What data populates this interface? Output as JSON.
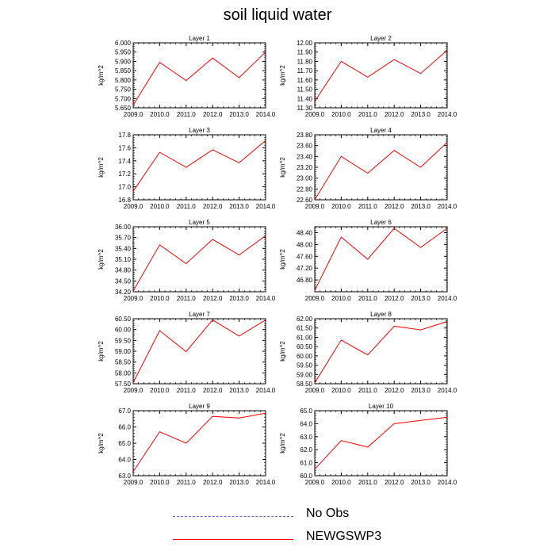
{
  "figure": {
    "title": "soil liquid water"
  },
  "legend": {
    "entries": [
      {
        "label": "No Obs",
        "style": "dashed",
        "color": "#6666cc"
      },
      {
        "label": "NEWGSWP3",
        "style": "solid",
        "color": "#ff0000"
      }
    ]
  },
  "chart_data": [
    {
      "type": "line",
      "title": "Layer 1",
      "ylabel": "kg/m^2",
      "x": [
        2009,
        2010,
        2011,
        2012,
        2013,
        2014
      ],
      "series": [
        {
          "name": "NEWGSWP3",
          "color": "#ff0000",
          "values": [
            5.665,
            5.895,
            5.797,
            5.918,
            5.812,
            5.95
          ]
        }
      ],
      "xticks": [
        "2009.0",
        "2010.0",
        "2011.0",
        "2012.0",
        "2013.0",
        "2014.0"
      ],
      "ylim": [
        5.65,
        6.0
      ],
      "yticks": [
        5.65,
        5.7,
        5.75,
        5.8,
        5.85,
        5.9,
        5.95,
        6.0
      ],
      "ytick_labels": [
        "5.650",
        "5.700",
        "5.750",
        "5.800",
        "5.850",
        "5.900",
        "5.950",
        "6.000"
      ]
    },
    {
      "type": "line",
      "title": "Layer 2",
      "ylabel": "kg/m^2",
      "x": [
        2009,
        2010,
        2011,
        2012,
        2013,
        2014
      ],
      "series": [
        {
          "name": "NEWGSWP3",
          "color": "#ff0000",
          "values": [
            11.37,
            11.8,
            11.63,
            11.82,
            11.67,
            11.92
          ]
        }
      ],
      "xticks": [
        "2009.0",
        "2010.0",
        "2011.0",
        "2012.0",
        "2013.0",
        "2014.0"
      ],
      "ylim": [
        11.3,
        12.0
      ],
      "yticks": [
        11.3,
        11.4,
        11.5,
        11.6,
        11.7,
        11.8,
        11.9,
        12.0
      ],
      "ytick_labels": [
        "11.30",
        "11.40",
        "11.50",
        "11.60",
        "11.70",
        "11.80",
        "11.90",
        "12.00"
      ]
    },
    {
      "type": "line",
      "title": "Layer 3",
      "ylabel": "kg/m^2",
      "x": [
        2009,
        2010,
        2011,
        2012,
        2013,
        2014
      ],
      "series": [
        {
          "name": "NEWGSWP3",
          "color": "#ff0000",
          "values": [
            16.93,
            17.53,
            17.3,
            17.57,
            17.37,
            17.71
          ]
        }
      ],
      "xticks": [
        "2009.0",
        "2010.0",
        "2011.0",
        "2012.0",
        "2013.0",
        "2014.0"
      ],
      "ylim": [
        16.8,
        17.8
      ],
      "yticks": [
        16.8,
        17.0,
        17.2,
        17.4,
        17.6,
        17.8
      ],
      "ytick_labels": [
        "16.8",
        "17.0",
        "17.2",
        "17.4",
        "17.6",
        "17.8"
      ]
    },
    {
      "type": "line",
      "title": "Layer 4",
      "ylabel": "kg/m^2",
      "x": [
        2009,
        2010,
        2011,
        2012,
        2013,
        2014
      ],
      "series": [
        {
          "name": "NEWGSWP3",
          "color": "#ff0000",
          "values": [
            22.6,
            23.4,
            23.09,
            23.51,
            23.2,
            23.66
          ]
        }
      ],
      "xticks": [
        "2009.0",
        "2010.0",
        "2011.0",
        "2012.0",
        "2013.0",
        "2014.0"
      ],
      "ylim": [
        22.6,
        23.8
      ],
      "yticks": [
        22.6,
        22.8,
        23.0,
        23.2,
        23.4,
        23.6,
        23.8
      ],
      "ytick_labels": [
        "22.60",
        "22.80",
        "23.00",
        "23.20",
        "23.40",
        "23.60",
        "23.80"
      ]
    },
    {
      "type": "line",
      "title": "Layer 5",
      "ylabel": "kg/m^2",
      "x": [
        2009,
        2010,
        2011,
        2012,
        2013,
        2014
      ],
      "series": [
        {
          "name": "NEWGSWP3",
          "color": "#ff0000",
          "values": [
            34.22,
            35.5,
            34.98,
            35.65,
            35.22,
            35.75
          ]
        }
      ],
      "xticks": [
        "2009.0",
        "2010.0",
        "2011.0",
        "2012.0",
        "2013.0",
        "2014.0"
      ],
      "ylim": [
        34.2,
        36.0
      ],
      "yticks": [
        34.2,
        34.5,
        34.8,
        35.1,
        35.4,
        35.7,
        36.0
      ],
      "ytick_labels": [
        "34.20",
        "34.50",
        "34.80",
        "35.10",
        "35.40",
        "35.70",
        "36.00"
      ]
    },
    {
      "type": "line",
      "title": "Layer 6",
      "ylabel": "kg/m^2",
      "x": [
        2009,
        2010,
        2011,
        2012,
        2013,
        2014
      ],
      "series": [
        {
          "name": "NEWGSWP3",
          "color": "#ff0000",
          "values": [
            46.45,
            48.25,
            47.5,
            48.55,
            47.9,
            48.55
          ]
        }
      ],
      "xticks": [
        "2009.0",
        "2010.0",
        "2011.0",
        "2012.0",
        "2013.0",
        "2014.0"
      ],
      "ylim": [
        46.4,
        48.6
      ],
      "yticks": [
        46.8,
        47.2,
        47.6,
        48.0,
        48.4
      ],
      "ytick_labels": [
        "46.80",
        "47.20",
        "47.60",
        "48.00",
        "48.40"
      ]
    },
    {
      "type": "line",
      "title": "Layer 7",
      "ylabel": "kg/m^2",
      "x": [
        2009,
        2010,
        2011,
        2012,
        2013,
        2014
      ],
      "series": [
        {
          "name": "NEWGSWP3",
          "color": "#ff0000",
          "values": [
            57.55,
            59.95,
            58.98,
            60.45,
            59.7,
            60.45
          ]
        }
      ],
      "xticks": [
        "2009.0",
        "2010.0",
        "2011.0",
        "2012.0",
        "2013.0",
        "2014.0"
      ],
      "ylim": [
        57.5,
        60.5
      ],
      "yticks": [
        57.5,
        58.0,
        58.5,
        59.0,
        59.5,
        60.0,
        60.5
      ],
      "ytick_labels": [
        "57.50",
        "58.00",
        "58.50",
        "59.00",
        "59.50",
        "60.00",
        "60.50"
      ]
    },
    {
      "type": "line",
      "title": "Layer 8",
      "ylabel": "kg/m^2",
      "x": [
        2009,
        2010,
        2011,
        2012,
        2013,
        2014
      ],
      "series": [
        {
          "name": "NEWGSWP3",
          "color": "#ff0000",
          "values": [
            58.55,
            60.85,
            60.05,
            61.6,
            61.4,
            61.85
          ]
        }
      ],
      "xticks": [
        "2009.0",
        "2010.0",
        "2011.0",
        "2012.0",
        "2013.0",
        "2014.0"
      ],
      "ylim": [
        58.5,
        62.0
      ],
      "yticks": [
        58.5,
        59.0,
        59.5,
        60.0,
        60.5,
        61.0,
        61.5,
        62.0
      ],
      "ytick_labels": [
        "58.50",
        "59.00",
        "59.50",
        "60.00",
        "60.50",
        "61.00",
        "61.50",
        "62.00"
      ]
    },
    {
      "type": "line",
      "title": "Layer 9",
      "ylabel": "kg/m^2",
      "x": [
        2009,
        2010,
        2011,
        2012,
        2013,
        2014
      ],
      "series": [
        {
          "name": "NEWGSWP3",
          "color": "#ff0000",
          "values": [
            63.25,
            65.7,
            65.0,
            66.65,
            66.55,
            66.85
          ]
        }
      ],
      "xticks": [
        "2009.0",
        "2010.0",
        "2011.0",
        "2012.0",
        "2013.0",
        "2014.0"
      ],
      "ylim": [
        63.0,
        67.0
      ],
      "yticks": [
        63.0,
        64.0,
        65.0,
        66.0,
        67.0
      ],
      "ytick_labels": [
        "63.0",
        "64.0",
        "65.0",
        "66.0",
        "67.0"
      ]
    },
    {
      "type": "line",
      "title": "Layer 10",
      "ylabel": "kg/m^2",
      "x": [
        2009,
        2010,
        2011,
        2012,
        2013,
        2014
      ],
      "series": [
        {
          "name": "NEWGSWP3",
          "color": "#ff0000",
          "values": [
            60.5,
            62.7,
            62.2,
            64.0,
            64.25,
            64.5
          ]
        }
      ],
      "xticks": [
        "2009.0",
        "2010.0",
        "2011.0",
        "2012.0",
        "2013.0",
        "2014.0"
      ],
      "ylim": [
        60.0,
        65.0
      ],
      "yticks": [
        60.0,
        61.0,
        62.0,
        63.0,
        64.0,
        65.0
      ],
      "ytick_labels": [
        "60.0",
        "61.0",
        "62.0",
        "63.0",
        "64.0",
        "65.0"
      ]
    }
  ]
}
